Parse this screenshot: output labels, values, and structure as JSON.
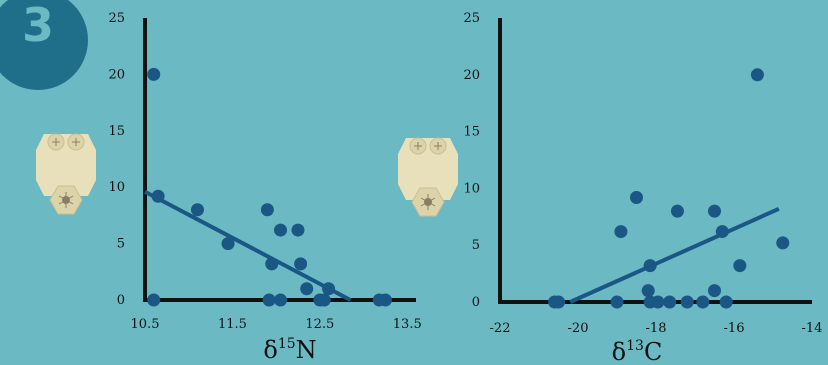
{
  "badge": {
    "number": "3"
  },
  "colors": {
    "background": "#6ab9c3",
    "badge": "#1f6f8b",
    "points": "#1a5785",
    "axis": "#111111",
    "tooth": "#e8dfbb"
  },
  "icons": [
    "tooth-icon",
    "tooth-icon"
  ],
  "chart_data": [
    {
      "type": "scatter",
      "title": "",
      "xlabel_main": "δ",
      "xlabel_sup": "15",
      "xlabel_after": "N",
      "ylabel": "",
      "xlim": [
        10.5,
        13.6
      ],
      "ylim": [
        0,
        25
      ],
      "xticks": [
        "10.5",
        "11.5",
        "12.5",
        "13.5"
      ],
      "xtick_values": [
        10.5,
        11.5,
        12.5,
        13.5
      ],
      "yticks": [
        "0",
        "5",
        "10",
        "15",
        "20",
        "25"
      ],
      "ytick_values": [
        0,
        5,
        10,
        15,
        20,
        25
      ],
      "points": [
        {
          "x": 10.6,
          "y": 20
        },
        {
          "x": 10.6,
          "y": 0
        },
        {
          "x": 10.65,
          "y": 9.2
        },
        {
          "x": 11.1,
          "y": 8
        },
        {
          "x": 11.45,
          "y": 5
        },
        {
          "x": 11.9,
          "y": 8
        },
        {
          "x": 11.95,
          "y": 3.2
        },
        {
          "x": 11.92,
          "y": 0
        },
        {
          "x": 12.05,
          "y": 0
        },
        {
          "x": 12.05,
          "y": 6.2
        },
        {
          "x": 12.25,
          "y": 6.2
        },
        {
          "x": 12.28,
          "y": 3.2
        },
        {
          "x": 12.35,
          "y": 1
        },
        {
          "x": 12.5,
          "y": 0
        },
        {
          "x": 12.55,
          "y": 0
        },
        {
          "x": 12.6,
          "y": 1
        },
        {
          "x": 13.18,
          "y": 0
        },
        {
          "x": 13.25,
          "y": 0
        }
      ],
      "trendline": [
        {
          "x": 10.5,
          "y": 9.6
        },
        {
          "x": 12.85,
          "y": 0
        }
      ],
      "grid": false
    },
    {
      "type": "scatter",
      "title": "",
      "xlabel_main": "δ",
      "xlabel_sup": "13",
      "xlabel_after": "C",
      "ylabel": "",
      "xlim": [
        -22,
        -14
      ],
      "ylim": [
        0,
        25
      ],
      "xticks": [
        "-22",
        "-20",
        "-18",
        "-16",
        "-14"
      ],
      "xtick_values": [
        -22,
        -20,
        -18,
        -16,
        -14
      ],
      "yticks": [
        "0",
        "5",
        "10",
        "15",
        "20",
        "25"
      ],
      "ytick_values": [
        0,
        5,
        10,
        15,
        20,
        25
      ],
      "points": [
        {
          "x": -20.6,
          "y": 0
        },
        {
          "x": -20.5,
          "y": 0
        },
        {
          "x": -19,
          "y": 0
        },
        {
          "x": -18.9,
          "y": 6.2
        },
        {
          "x": -18.5,
          "y": 9.2
        },
        {
          "x": -18.2,
          "y": 1
        },
        {
          "x": -18.15,
          "y": 3.2
        },
        {
          "x": -18.15,
          "y": 0
        },
        {
          "x": -17.95,
          "y": 0
        },
        {
          "x": -17.65,
          "y": 0
        },
        {
          "x": -17.45,
          "y": 8
        },
        {
          "x": -17.2,
          "y": 0
        },
        {
          "x": -16.8,
          "y": 0
        },
        {
          "x": -16.5,
          "y": 1
        },
        {
          "x": -16.5,
          "y": 8
        },
        {
          "x": -16.3,
          "y": 6.2
        },
        {
          "x": -16.2,
          "y": 0
        },
        {
          "x": -15.85,
          "y": 3.2
        },
        {
          "x": -15.4,
          "y": 20
        },
        {
          "x": -14.75,
          "y": 5.2
        }
      ],
      "trendline": [
        {
          "x": -20.2,
          "y": 0
        },
        {
          "x": -14.85,
          "y": 8.2
        }
      ],
      "grid": false
    }
  ]
}
